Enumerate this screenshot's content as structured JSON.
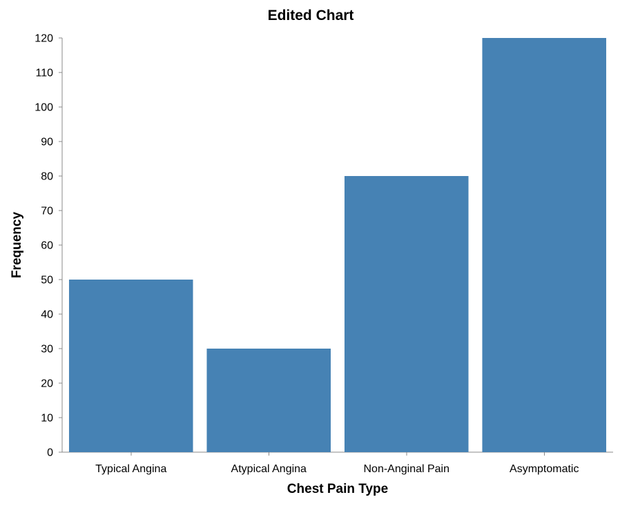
{
  "chart_data": {
    "type": "bar",
    "title": "Edited Chart",
    "xlabel": "Chest Pain Type",
    "ylabel": "Frequency",
    "categories": [
      "Typical Angina",
      "Atypical Angina",
      "Non-Anginal Pain",
      "Asymptomatic"
    ],
    "values": [
      50,
      30,
      80,
      120
    ],
    "ylim": [
      0,
      120
    ],
    "yticks": [
      0,
      10,
      20,
      30,
      40,
      50,
      60,
      70,
      80,
      90,
      100,
      110,
      120
    ],
    "grid": false,
    "legend": "none",
    "bar_color": "#4682b4"
  }
}
